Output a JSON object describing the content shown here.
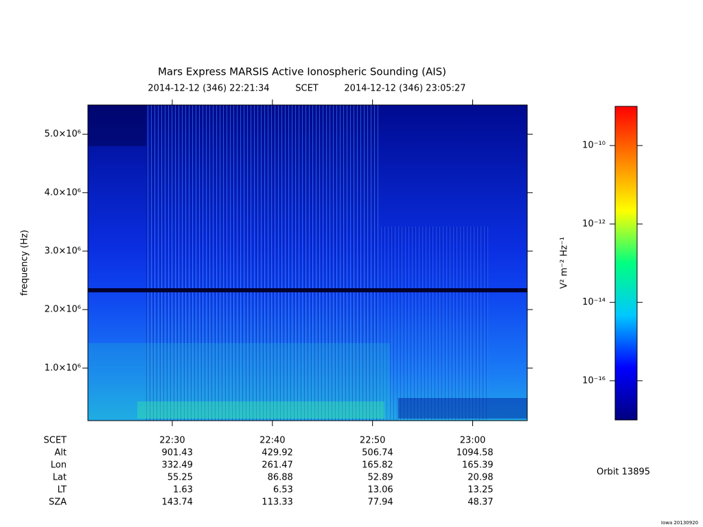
{
  "chart_data": {
    "type": "spectrogram",
    "title": "Mars Express MARSIS Active Ionospheric Sounding (AIS)",
    "time_start": "2014-12-12 (346) 22:21:34",
    "time_system": "SCET",
    "time_end": "2014-12-12 (346) 23:05:27",
    "y_label": "frequency (Hz)",
    "xlim": [
      1341.57,
      1385.45
    ],
    "xticks": [
      {
        "value": 1350,
        "label": "22:30"
      },
      {
        "value": 1360,
        "label": "22:40"
      },
      {
        "value": 1370,
        "label": "22:50"
      },
      {
        "value": 1380,
        "label": "23:00"
      }
    ],
    "ylim": [
      100000,
      5500000
    ],
    "yticks": [
      {
        "value": 1000000,
        "label": "1.0×10⁶"
      },
      {
        "value": 2000000,
        "label": "2.0×10⁶"
      },
      {
        "value": 3000000,
        "label": "3.0×10⁶"
      },
      {
        "value": 4000000,
        "label": "4.0×10⁶"
      },
      {
        "value": 5000000,
        "label": "5.0×10⁶"
      }
    ],
    "colorbar": {
      "label": "V² m⁻² Hz⁻¹",
      "log_scale": true,
      "clim": [
        1e-17,
        1e-09
      ],
      "ticks": [
        {
          "value": 1e-10,
          "label": "10⁻¹⁰"
        },
        {
          "value": 1e-12,
          "label": "10⁻¹²"
        },
        {
          "value": 1e-14,
          "label": "10⁻¹⁴"
        },
        {
          "value": 1e-16,
          "label": "10⁻¹⁶"
        }
      ],
      "colors": [
        "#000080",
        "#0000ff",
        "#00c8ff",
        "#00ff80",
        "#ffff00",
        "#ff8000",
        "#ff0000"
      ]
    },
    "ephemeris": {
      "row_labels": [
        "SCET",
        "Alt",
        "Lon",
        "Lat",
        "LT",
        "SZA"
      ],
      "columns": [
        [
          "901.43",
          "332.49",
          "55.25",
          "1.63",
          "143.74"
        ],
        [
          "429.92",
          "261.47",
          "86.88",
          "6.53",
          "113.33"
        ],
        [
          "506.74",
          "165.82",
          "52.89",
          "13.06",
          "77.94"
        ],
        [
          "1094.58",
          "165.39",
          "20.98",
          "13.25",
          "48.37"
        ]
      ]
    },
    "orbit": "Orbit 13895",
    "footer": "Iowa 20130920"
  }
}
